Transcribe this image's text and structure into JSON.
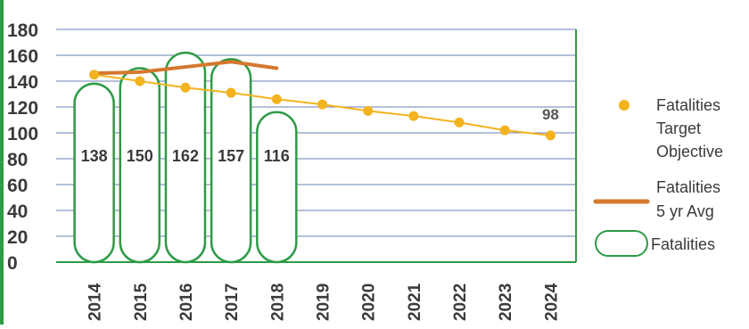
{
  "chart_data": {
    "type": "bar",
    "ylim": [
      0,
      180
    ],
    "yticks": [
      0,
      20,
      40,
      60,
      80,
      100,
      120,
      140,
      160,
      180
    ],
    "categories": [
      "2014",
      "2015",
      "2016",
      "2017",
      "2018",
      "2019",
      "2020",
      "2021",
      "2022",
      "2023",
      "2024"
    ],
    "grid": true,
    "legend_position": "right",
    "series": [
      {
        "name": "Fatalities",
        "type": "bar",
        "color": "#2e9b46",
        "values": [
          138,
          150,
          162,
          157,
          116,
          null,
          null,
          null,
          null,
          null,
          null
        ],
        "data_labels": [
          "138",
          "150",
          "162",
          "157",
          "116"
        ]
      },
      {
        "name": "Fatalities 5 yr Avg",
        "type": "line",
        "color": "#d4782e",
        "values": [
          146,
          147,
          151,
          155,
          150,
          null,
          null,
          null,
          null,
          null,
          null
        ]
      },
      {
        "name": "Fatalities Target Objective",
        "type": "scatter-line",
        "color": "#f2b31e",
        "values": [
          145,
          140,
          135,
          131,
          126,
          122,
          117,
          113,
          108,
          102,
          98
        ],
        "data_labels": {
          "2024": "98"
        }
      }
    ],
    "legend": [
      {
        "label_lines": [
          "Fatalities",
          "Target",
          "Objective"
        ],
        "marker": "dot"
      },
      {
        "label_lines": [
          "Fatalities",
          "5 yr Avg"
        ],
        "marker": "line"
      },
      {
        "label_lines": [
          "Fatalities"
        ],
        "marker": "rounded-rect"
      }
    ]
  }
}
